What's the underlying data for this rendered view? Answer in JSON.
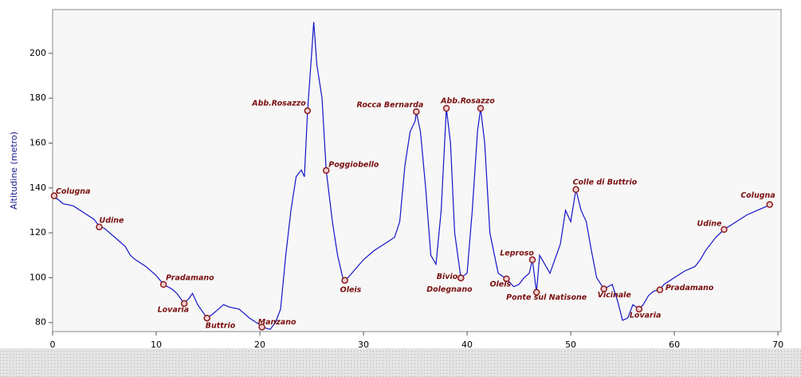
{
  "chart_data": {
    "type": "line",
    "y_label": "Altitudine  (metro)",
    "color": "#1414c8",
    "marker_color": "#8b1a1a",
    "xlim": [
      0,
      70.3
    ],
    "ylim": [
      76,
      219.5
    ],
    "xticks": [
      0,
      10,
      20,
      30,
      40,
      50,
      60,
      70
    ],
    "yticks": [
      80,
      100,
      120,
      140,
      160,
      180,
      200
    ],
    "x": [
      0,
      0.5,
      1,
      2,
      3,
      4,
      4.5,
      5,
      6,
      7,
      7.5,
      8,
      9,
      10,
      10.7,
      11.5,
      12,
      12.7,
      13.2,
      13.5,
      14,
      14.9,
      15.5,
      16,
      16.5,
      17,
      18,
      19,
      20,
      20.2,
      21,
      21.5,
      22,
      22.5,
      23,
      23.5,
      24,
      24.3,
      24.6,
      25,
      25.2,
      25.5,
      26,
      26.4,
      27,
      27.5,
      28,
      28.2,
      28.5,
      30,
      31,
      32,
      33,
      33.5,
      34,
      34.5,
      35,
      35.1,
      35.5,
      36,
      36.5,
      37,
      37.5,
      38,
      38.4,
      38.8,
      39.4,
      40,
      40.5,
      41,
      41.3,
      41.7,
      42.2,
      43,
      43.8,
      44.5,
      45,
      45.5,
      46,
      46.3,
      46.7,
      47,
      48,
      49,
      49.5,
      50,
      50.5,
      51,
      51.5,
      52,
      52.5,
      53.2,
      54,
      54.5,
      55,
      55.5,
      56,
      56.6,
      57,
      57.5,
      58,
      58.6,
      59,
      60,
      61,
      62,
      62.5,
      63,
      64,
      64.8,
      66,
      67,
      68,
      69,
      69.2
    ],
    "values": [
      136,
      135,
      133,
      132,
      129,
      126,
      123,
      122,
      118,
      114,
      110,
      108,
      105,
      101,
      97,
      95,
      93,
      88.5,
      91,
      93,
      88,
      82,
      84,
      86,
      88,
      87,
      86,
      82,
      79,
      78,
      77,
      80,
      86,
      110,
      130,
      145,
      148,
      145,
      174,
      200,
      214,
      195,
      180,
      148,
      125,
      110,
      100,
      99,
      100,
      108,
      112,
      115,
      118,
      125,
      150,
      165,
      170,
      174,
      165,
      140,
      110,
      106,
      130,
      175.5,
      160,
      120,
      100,
      102,
      130,
      165,
      175.5,
      160,
      120,
      102,
      99.5,
      96,
      97,
      100,
      102,
      108,
      93.5,
      110,
      102,
      115,
      130,
      125,
      139.3,
      130,
      125,
      112,
      100,
      95,
      97,
      90,
      81,
      82,
      88,
      86,
      88,
      92,
      94,
      94.6,
      97,
      100,
      103,
      105,
      108,
      112,
      118,
      121.5,
      125,
      128,
      130,
      132,
      132.6
    ],
    "annotations": [
      {
        "label": "Colugna",
        "x": 0.15,
        "y": 136.5
      },
      {
        "label": "Udine",
        "x": 4.5,
        "y": 122.6
      },
      {
        "label": "Pradamano",
        "x": 10.7,
        "y": 97
      },
      {
        "label": "Lovaria",
        "x": 12.7,
        "y": 88.5
      },
      {
        "label": "Buttrio",
        "x": 14.9,
        "y": 82
      },
      {
        "label": "Manzano",
        "x": 20.2,
        "y": 78
      },
      {
        "label": "Abb.Rosazzo",
        "x": 24.6,
        "y": 174.4
      },
      {
        "label": "Poggiobello",
        "x": 26.4,
        "y": 147.8
      },
      {
        "label": "Oleis",
        "x": 28.2,
        "y": 98.8
      },
      {
        "label": "Rocca Bernarda",
        "x": 35.1,
        "y": 174
      },
      {
        "x": 38,
        "y": 175.5
      },
      {
        "label": "Abb.Rosazzo",
        "x": 41.3,
        "y": 175.5
      },
      {
        "label": "Bivio",
        "x": 39.4,
        "y": 99.9
      },
      {
        "label": "Dolegnano",
        "x": 39.4,
        "y": 99.9
      },
      {
        "label": "Oleis",
        "x": 43.8,
        "y": 99.5
      },
      {
        "label": "Leproso",
        "x": 46.3,
        "y": 108
      },
      {
        "label": "Ponte sul Natisone",
        "x": 46.7,
        "y": 93.5
      },
      {
        "label": "Colle di Buttrio",
        "x": 50.5,
        "y": 139.3
      },
      {
        "label": "Vicinale",
        "x": 53.2,
        "y": 95
      },
      {
        "label": "Lovaria",
        "x": 56.6,
        "y": 86
      },
      {
        "label": "Pradamano",
        "x": 58.6,
        "y": 94.6
      },
      {
        "label": "Udine",
        "x": 64.8,
        "y": 121.5
      },
      {
        "label": "Colugna",
        "x": 69.2,
        "y": 132.6
      }
    ]
  }
}
